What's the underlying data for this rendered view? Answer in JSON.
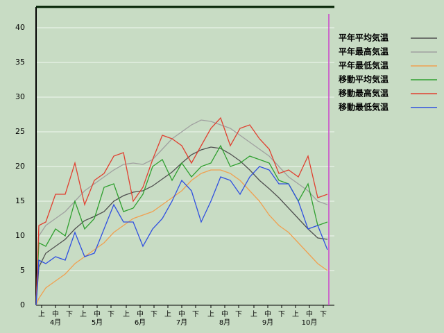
{
  "chart_data": {
    "type": "line",
    "x": [
      0,
      2,
      7,
      14,
      21,
      28,
      35,
      42,
      49,
      56,
      63,
      70,
      77,
      84,
      91,
      98,
      105,
      112,
      119,
      126,
      133,
      140,
      147,
      154,
      161,
      168,
      175,
      182,
      189,
      196,
      203,
      210
    ],
    "xlim": [
      0,
      215
    ],
    "ylim": [
      0,
      43
    ],
    "yticks": [
      0,
      5,
      10,
      15,
      20,
      25,
      30,
      35,
      40
    ],
    "grid": true,
    "xticks": [
      {
        "value": 4,
        "label": "上"
      },
      {
        "value": 14,
        "label": "中"
      },
      {
        "value": 24,
        "label": "下"
      },
      {
        "value": 34,
        "label": "上"
      },
      {
        "value": 44,
        "label": "中"
      },
      {
        "value": 54,
        "label": "下"
      },
      {
        "value": 65,
        "label": "上"
      },
      {
        "value": 75,
        "label": "中"
      },
      {
        "value": 85,
        "label": "下"
      },
      {
        "value": 95,
        "label": "上"
      },
      {
        "value": 105,
        "label": "中"
      },
      {
        "value": 115,
        "label": "下"
      },
      {
        "value": 126,
        "label": "上"
      },
      {
        "value": 136,
        "label": "中"
      },
      {
        "value": 146,
        "label": "下"
      },
      {
        "value": 157,
        "label": "上"
      },
      {
        "value": 167,
        "label": "中"
      },
      {
        "value": 177,
        "label": "下"
      },
      {
        "value": 187,
        "label": "上"
      },
      {
        "value": 197,
        "label": "中"
      },
      {
        "value": 207,
        "label": "下"
      }
    ],
    "month_labels": [
      {
        "value": 14,
        "label": "4月"
      },
      {
        "value": 44,
        "label": "5月"
      },
      {
        "value": 75,
        "label": "6月"
      },
      {
        "value": 105,
        "label": "7月"
      },
      {
        "value": 136,
        "label": "8月"
      },
      {
        "value": 167,
        "label": "9月"
      },
      {
        "value": 197,
        "label": "10月"
      }
    ],
    "marker_line": {
      "x": 211,
      "color": "#cc44cc"
    },
    "series": [
      {
        "name": "平年平均気温",
        "color": "#505050",
        "values": [
          0,
          5.5,
          7.5,
          8.5,
          9.5,
          11,
          12.2,
          12.8,
          13.5,
          15,
          15.8,
          16.3,
          16.5,
          17.2,
          18.2,
          19.2,
          20.5,
          21.7,
          22.4,
          22.8,
          22.6,
          21.8,
          20.8,
          19.5,
          18,
          16.8,
          15.5,
          14,
          12.5,
          11,
          9.7,
          9.5
        ]
      },
      {
        "name": "平年最高気温",
        "color": "#a0a0a0",
        "values": [
          0,
          10,
          11.5,
          12.5,
          13.5,
          15,
          16.5,
          17.5,
          18.5,
          19.5,
          20.3,
          20.5,
          20.3,
          21,
          22.5,
          24,
          25,
          26,
          26.7,
          26.5,
          26,
          25.5,
          24.5,
          23.5,
          22.5,
          21.5,
          20,
          18.5,
          17.5,
          16.5,
          15,
          14.5
        ]
      },
      {
        "name": "平年最低気温",
        "color": "#f0a050",
        "values": [
          0,
          1,
          2.5,
          3.5,
          4.5,
          6,
          7,
          8,
          9,
          10.5,
          11.5,
          12.5,
          13,
          13.5,
          14.5,
          15.5,
          16.5,
          18,
          19,
          19.5,
          19.5,
          19,
          18,
          16.5,
          15,
          13,
          11.5,
          10.5,
          9,
          7.5,
          6,
          5
        ]
      },
      {
        "name": "移動平均気温",
        "color": "#30a030",
        "values": [
          0,
          9,
          8.5,
          11,
          10,
          15,
          11,
          12.5,
          17,
          17.5,
          13.5,
          14,
          16,
          20,
          21,
          18,
          20.5,
          18.5,
          20,
          20.5,
          23,
          20,
          20.5,
          21.5,
          21,
          20.5,
          18,
          17.5,
          15,
          17.5,
          11.5,
          12
        ]
      },
      {
        "name": "移動最高気温",
        "color": "#e04030",
        "values": [
          0,
          11.5,
          12,
          16,
          16,
          20.5,
          14.5,
          18,
          19,
          21.5,
          22,
          15,
          17,
          21,
          24.5,
          24,
          23,
          20.5,
          23,
          25.5,
          27,
          23,
          25.5,
          26,
          24,
          22.5,
          19,
          19.5,
          18.5,
          21.5,
          15.5,
          16
        ]
      },
      {
        "name": "移動最低気温",
        "color": "#3050e0",
        "values": [
          0,
          6.5,
          6,
          7,
          6.5,
          10.5,
          7,
          7.5,
          11,
          14.5,
          12,
          12,
          8.5,
          11,
          12.5,
          15,
          18,
          16.5,
          12,
          15,
          18.5,
          18,
          16,
          18.5,
          20,
          19.5,
          17.5,
          17.5,
          15,
          11,
          11.5,
          8
        ]
      }
    ]
  }
}
